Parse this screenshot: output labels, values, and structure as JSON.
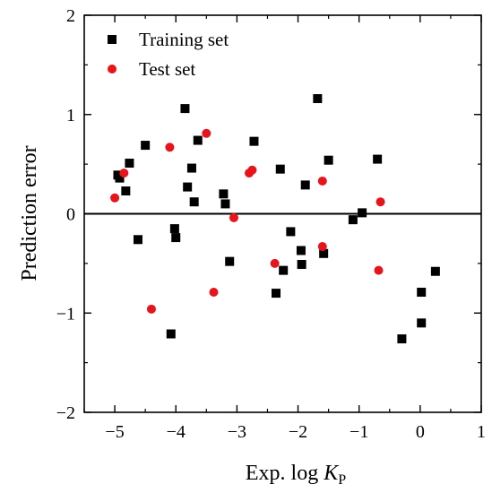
{
  "chart_data": {
    "type": "scatter",
    "title": "",
    "xlabel": {
      "prefix": "Exp. log ",
      "italic": "K",
      "subscript": "P"
    },
    "ylabel": "Prediction error",
    "xlim": [
      -5.5,
      1
    ],
    "ylim": [
      -2,
      2
    ],
    "xticks": [
      -5,
      -4,
      -3,
      -2,
      -1,
      0,
      1
    ],
    "yticks": [
      -2,
      -1,
      0,
      1,
      2
    ],
    "xtick_labels": [
      "−5",
      "−4",
      "−3",
      "−2",
      "−1",
      "0",
      "1"
    ],
    "ytick_labels": [
      "−2",
      "−1",
      "0",
      "1",
      "2"
    ],
    "reference_line_y": 0,
    "grid": false,
    "legend_position": "top-left",
    "series": [
      {
        "name": "Training set",
        "marker": "square",
        "color": "#000000",
        "points": [
          [
            -4.95,
            0.39
          ],
          [
            -4.92,
            0.36
          ],
          [
            -4.82,
            0.23
          ],
          [
            -4.76,
            0.51
          ],
          [
            -4.62,
            -0.26
          ],
          [
            -4.5,
            0.69
          ],
          [
            -4.08,
            -1.21
          ],
          [
            -4.02,
            -0.15
          ],
          [
            -4.0,
            -0.24
          ],
          [
            -3.85,
            1.06
          ],
          [
            -3.81,
            0.27
          ],
          [
            -3.74,
            0.46
          ],
          [
            -3.7,
            0.12
          ],
          [
            -3.64,
            0.74
          ],
          [
            -3.22,
            0.2
          ],
          [
            -3.19,
            0.1
          ],
          [
            -3.12,
            -0.48
          ],
          [
            -2.72,
            0.73
          ],
          [
            -2.36,
            -0.8
          ],
          [
            -2.29,
            0.45
          ],
          [
            -2.24,
            -0.57
          ],
          [
            -2.12,
            -0.18
          ],
          [
            -1.95,
            -0.37
          ],
          [
            -1.94,
            -0.51
          ],
          [
            -1.88,
            0.29
          ],
          [
            -1.68,
            1.16
          ],
          [
            -1.58,
            -0.4
          ],
          [
            -1.5,
            0.54
          ],
          [
            -1.1,
            -0.06
          ],
          [
            -0.95,
            0.01
          ],
          [
            -0.7,
            0.55
          ],
          [
            -0.3,
            -1.26
          ],
          [
            0.02,
            -0.79
          ],
          [
            0.02,
            -1.1
          ],
          [
            0.25,
            -0.58
          ]
        ]
      },
      {
        "name": "Test set",
        "marker": "circle",
        "color": "#e8141c",
        "points": [
          [
            -5.0,
            0.16
          ],
          [
            -4.85,
            0.41
          ],
          [
            -4.4,
            -0.96
          ],
          [
            -4.1,
            0.67
          ],
          [
            -3.5,
            0.81
          ],
          [
            -3.38,
            -0.79
          ],
          [
            -3.05,
            -0.04
          ],
          [
            -2.8,
            0.41
          ],
          [
            -2.75,
            0.44
          ],
          [
            -2.38,
            -0.5
          ],
          [
            -1.6,
            0.33
          ],
          [
            -1.6,
            -0.33
          ],
          [
            -0.68,
            -0.57
          ],
          [
            -0.65,
            0.12
          ]
        ]
      }
    ]
  }
}
